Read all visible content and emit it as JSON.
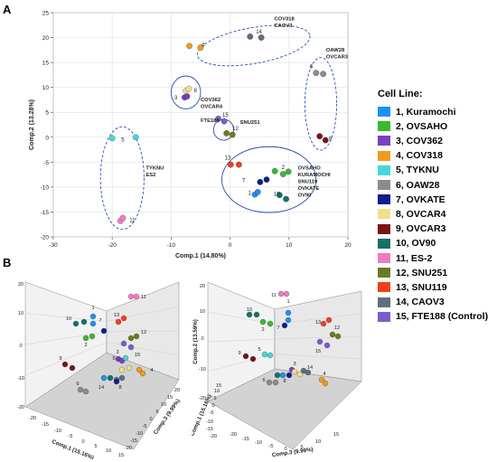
{
  "panel_labels": {
    "a": "A",
    "b": "B"
  },
  "legend": {
    "title": "Cell Line:",
    "items": [
      {
        "label": "1,   Kuramochi",
        "color": "#1f8ff5"
      },
      {
        "label": "2,   OVSAHO",
        "color": "#39b92f"
      },
      {
        "label": "3,   COV362",
        "color": "#7a3fbf"
      },
      {
        "label": "4,   COV318",
        "color": "#f39a1b"
      },
      {
        "label": "5,   TYKNU",
        "color": "#48d7d6"
      },
      {
        "label": "6,   OAW28",
        "color": "#8c8c8c"
      },
      {
        "label": "7,   OVKATE",
        "color": "#0b1f8f"
      },
      {
        "label": "8,   OVCAR4",
        "color": "#f0e08a"
      },
      {
        "label": "9,   OVCAR3",
        "color": "#7a1515"
      },
      {
        "label": "10, OV90",
        "color": "#11736a"
      },
      {
        "label": "11, ES-2",
        "color": "#f27ac4"
      },
      {
        "label": "12, SNU251",
        "color": "#6e7a20"
      },
      {
        "label": "13, SNU119",
        "color": "#f0401b"
      },
      {
        "label": "14, CAOV3",
        "color": "#5f6f80"
      },
      {
        "label": "15, FTE188 (Control)",
        "color": "#7d5bd0"
      }
    ]
  },
  "chart_data": [
    {
      "type": "scatter",
      "xlabel": "Comp.1 (14.80%)",
      "ylabel": "Comp.2 (13.28%)",
      "xlim": [
        -30,
        20
      ],
      "ylim": [
        -20,
        25
      ],
      "xticks": [
        -30,
        -20,
        -10,
        0,
        10,
        20
      ],
      "yticks": [
        -20,
        -15,
        -10,
        -5,
        0,
        5,
        10,
        15,
        20,
        25
      ],
      "grid": true,
      "points": [
        {
          "line": 1,
          "x": 4.2,
          "y": -11.5
        },
        {
          "line": 1,
          "x": 4.7,
          "y": -11.0
        },
        {
          "line": 2,
          "x": 7.6,
          "y": -6.8
        },
        {
          "line": 2,
          "x": 9.0,
          "y": -7.4
        },
        {
          "line": 2,
          "x": 9.9,
          "y": -6.9
        },
        {
          "line": 3,
          "x": -7.7,
          "y": 8.0
        },
        {
          "line": 3,
          "x": -7.3,
          "y": 8.2
        },
        {
          "line": 4,
          "x": -6.9,
          "y": 18.3
        },
        {
          "line": 4,
          "x": -5.0,
          "y": 18.0
        },
        {
          "line": 5,
          "x": -20.0,
          "y": -0.2
        },
        {
          "line": 5,
          "x": -16.0,
          "y": 0.0
        },
        {
          "line": 6,
          "x": 14.6,
          "y": 12.9
        },
        {
          "line": 6,
          "x": 15.8,
          "y": 12.7
        },
        {
          "line": 7,
          "x": 5.1,
          "y": -9.0
        },
        {
          "line": 7,
          "x": 6.2,
          "y": -8.5
        },
        {
          "line": 8,
          "x": -7.5,
          "y": 9.3
        },
        {
          "line": 8,
          "x": -7.0,
          "y": 9.7
        },
        {
          "line": 9,
          "x": 15.2,
          "y": 0.2
        },
        {
          "line": 9,
          "x": 16.2,
          "y": -0.6
        },
        {
          "line": 10,
          "x": 8.4,
          "y": -11.6
        },
        {
          "line": 10,
          "x": 9.5,
          "y": -12.4
        },
        {
          "line": 11,
          "x": -18.6,
          "y": -16.8
        },
        {
          "line": 11,
          "x": -18.2,
          "y": -16.2
        },
        {
          "line": 12,
          "x": -0.6,
          "y": 0.8
        },
        {
          "line": 12,
          "x": 0.4,
          "y": 0.5
        },
        {
          "line": 13,
          "x": 0.1,
          "y": -5.5
        },
        {
          "line": 13,
          "x": 1.5,
          "y": -5.5
        },
        {
          "line": 14,
          "x": 3.4,
          "y": 20.2
        },
        {
          "line": 14,
          "x": 5.3,
          "y": 20.0
        },
        {
          "line": 15,
          "x": -2.0,
          "y": 3.7
        },
        {
          "line": 15,
          "x": -1.0,
          "y": 3.2
        }
      ],
      "point_numbers": [
        {
          "text": "1",
          "x": 3.3,
          "y": -11.2
        },
        {
          "text": "2",
          "x": 9.0,
          "y": -6.0
        },
        {
          "text": "3",
          "x": -9.2,
          "y": 7.9
        },
        {
          "text": "4",
          "x": -4.6,
          "y": 18.6
        },
        {
          "text": "5",
          "x": -18.2,
          "y": -0.5
        },
        {
          "text": "6",
          "x": 13.8,
          "y": 14.2
        },
        {
          "text": "7",
          "x": 2.3,
          "y": -8.7
        },
        {
          "text": "8",
          "x": -5.9,
          "y": 9.4
        },
        {
          "text": "9",
          "x": 17.0,
          "y": -0.3
        },
        {
          "text": "10",
          "x": 7.9,
          "y": -11.4
        },
        {
          "text": "11",
          "x": -16.6,
          "y": -16.6
        },
        {
          "text": "12",
          "x": 0.9,
          "y": 1.8
        },
        {
          "text": "13",
          "x": -0.4,
          "y": -4.1
        },
        {
          "text": "14",
          "x": 4.9,
          "y": 21.2
        },
        {
          "text": "15",
          "x": -0.8,
          "y": 4.5
        }
      ],
      "group_labels": [
        {
          "lines": [
            "COV318",
            "CAOV3"
          ],
          "x": 7.5,
          "y": 23.5
        },
        {
          "lines": [
            "OAW28",
            "OVCAR3"
          ],
          "x": 16.3,
          "y": 17.2
        },
        {
          "lines": [
            "COV362",
            "OVCAR4"
          ],
          "x": -5.0,
          "y": 7.2
        },
        {
          "lines": [
            "FTE188"
          ],
          "x": -5.0,
          "y": 3.0
        },
        {
          "lines": [
            "SNU251"
          ],
          "x": 1.7,
          "y": 2.7
        },
        {
          "lines": [
            "TYKNU",
            "ES2"
          ],
          "x": -14.3,
          "y": -6.5
        },
        {
          "lines": [
            "OVSAHO",
            "KURAMOCHI",
            "SNU119",
            "OVKATE",
            "OV90"
          ],
          "x": 11.5,
          "y": -6.5
        }
      ],
      "ellipses": [
        {
          "cx": 4.0,
          "cy": 18.4,
          "rx": 9.7,
          "ry": 3.6,
          "rotate": -10,
          "style": "dashed"
        },
        {
          "cx": 15.4,
          "cy": 6.7,
          "rx": 2.7,
          "ry": 9.3,
          "rotate": 0,
          "style": "dashed"
        },
        {
          "cx": -7.5,
          "cy": 9.0,
          "rx": 2.5,
          "ry": 3.3,
          "rotate": 0,
          "style": "solid"
        },
        {
          "cx": -1.1,
          "cy": 1.5,
          "rx": 1.7,
          "ry": 2.1,
          "rotate": 0,
          "style": "solid"
        },
        {
          "cx": -18.3,
          "cy": -8.2,
          "rx": 3.7,
          "ry": 10.3,
          "rotate": 0,
          "style": "dashed"
        },
        {
          "cx": 6.6,
          "cy": -8.5,
          "rx": 8.0,
          "ry": 6.6,
          "rotate": 0,
          "style": "solid"
        }
      ]
    },
    {
      "type": "scatter3d",
      "xlabel": "Comp.1 (15.16%)",
      "ylabel": "Comp.2 (13.59%)",
      "zlabel": "Comp.3 (9.99%)",
      "x_ticks": [
        "-20",
        "-15",
        "-10",
        "-5",
        "0",
        "5",
        "10",
        "15"
      ],
      "y_ticks": [
        "20",
        "10",
        "0",
        "-10",
        "-20"
      ],
      "z_ticks": [
        "20",
        "15",
        "10",
        "5",
        "0",
        "-5",
        "-10",
        "-15",
        "-20"
      ],
      "point_numbers": [
        "1",
        "2",
        "3",
        "4",
        "5",
        "6",
        "7",
        "8",
        "9",
        "10",
        "11",
        "12",
        "13",
        "14",
        "15"
      ]
    },
    {
      "type": "scatter3d",
      "xlabel": "Comp.1 (15.16%)",
      "ylabel": "Comp.2 (13.59%)",
      "zlabel": "Comp.3 (9.99%)",
      "x_ticks": [
        "-20",
        "-15",
        "-10",
        "-5",
        "0",
        "5",
        "10",
        "15",
        "20"
      ],
      "y_ticks": [
        "20",
        "10",
        "0",
        "-10",
        "-20"
      ],
      "z_ticks": [
        "-20",
        "-15",
        "-10",
        "-5",
        "0",
        "5",
        "10",
        "15"
      ],
      "point_numbers": [
        "1",
        "2",
        "3",
        "4",
        "5",
        "6",
        "7",
        "8",
        "9",
        "10",
        "11",
        "12",
        "13",
        "14",
        "15"
      ]
    }
  ]
}
